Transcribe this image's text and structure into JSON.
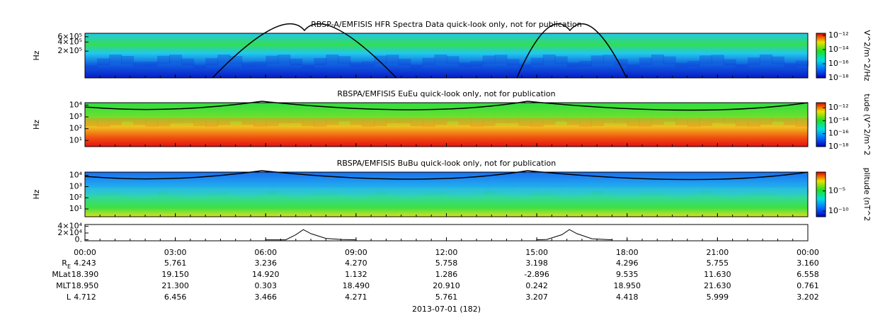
{
  "chart_data": [
    {
      "type": "spectrogram",
      "title": "RBSP-A/EMFISIS  HFR Spectra Data quick-look only, not for publication",
      "ylabel": "Hz",
      "log": true,
      "ylim": [
        26000,
        780000
      ],
      "yticks": [
        {
          "value": 600000,
          "label": "6×10⁵"
        },
        {
          "value": 400000,
          "label": "4×10⁵"
        },
        {
          "value": 200000,
          "label": "2×10⁵"
        }
      ],
      "colorbar_label": "V^2/m^2/Hz",
      "clim": [
        1e-18,
        2e-12
      ],
      "cticks": [
        {
          "value": 1e-12,
          "label": "10⁻¹²"
        },
        {
          "value": 1e-14,
          "label": "10⁻¹⁴"
        },
        {
          "value": 1e-16,
          "label": "10⁻¹⁶"
        },
        {
          "value": 1e-18,
          "label": "10⁻¹⁸"
        }
      ]
    },
    {
      "type": "spectrogram",
      "title": "RBSPA/EMFISIS  EuEu quick-look only, not for publication",
      "ylabel": "Hz",
      "log": true,
      "ylim": [
        3,
        16000
      ],
      "yticks": [
        {
          "value": 10000,
          "label": "10⁴"
        },
        {
          "value": 1000,
          "label": "10³"
        },
        {
          "value": 100,
          "label": "10²"
        },
        {
          "value": 10,
          "label": "10¹"
        }
      ],
      "colorbar_label": "tude (V^2/m^2",
      "clim": [
        1e-18,
        6e-12
      ],
      "cticks": [
        {
          "value": 1e-12,
          "label": "10⁻¹²"
        },
        {
          "value": 1e-14,
          "label": "10⁻¹⁴"
        },
        {
          "value": 1e-16,
          "label": "10⁻¹⁶"
        },
        {
          "value": 1e-18,
          "label": "10⁻¹⁸"
        }
      ]
    },
    {
      "type": "spectrogram",
      "title": "RBSPA/EMFISIS  BuBu quick-look only, not for publication",
      "ylabel": "Hz",
      "log": true,
      "ylim": [
        2,
        20000
      ],
      "yticks": [
        {
          "value": 10000,
          "label": "10⁴"
        },
        {
          "value": 1000,
          "label": "10³"
        },
        {
          "value": 100,
          "label": "10²"
        },
        {
          "value": 10,
          "label": "10¹"
        }
      ],
      "colorbar_label": "plitude (nT^2",
      "clim": [
        4e-12,
        0.45
      ],
      "cticks": [
        {
          "value": 1e-05,
          "label": "10⁻⁵"
        },
        {
          "value": 1e-10,
          "label": "10⁻¹⁰"
        }
      ]
    },
    {
      "type": "line",
      "color": "#000000",
      "ylim": [
        -3000,
        45000
      ],
      "yticks": [
        {
          "value": 40000,
          "label": "4×10⁴"
        },
        {
          "value": 20000,
          "label": "2×10⁴"
        },
        {
          "value": 0,
          "label": "0."
        }
      ],
      "x": [
        "06:00",
        "06:40",
        "07:00",
        "07:15",
        "07:30",
        "08:00",
        "08:30",
        "09:00",
        "15:00",
        "15:20",
        "15:50",
        "16:05",
        "16:20",
        "16:50",
        "17:20",
        "17:30"
      ],
      "values": [
        0,
        0,
        15000,
        30000,
        18000,
        4000,
        1000,
        0,
        0,
        1000,
        15000,
        30000,
        18000,
        3000,
        500,
        0
      ]
    }
  ],
  "time_axis": {
    "ticks": [
      "00:00",
      "03:00",
      "06:00",
      "09:00",
      "12:00",
      "15:00",
      "18:00",
      "21:00",
      "00:00"
    ],
    "date": "2013-07-01 (182)"
  },
  "ephemeris": {
    "rows": [
      {
        "label": "R",
        "sub": "E",
        "values": [
          "4.243",
          "5.761",
          "3.236",
          "4.270",
          "5.758",
          "3.198",
          "4.296",
          "5.755",
          "3.160"
        ]
      },
      {
        "label": "MLat",
        "values": [
          "18.390",
          "19.150",
          "14.920",
          "1.132",
          "1.286",
          "-2.896",
          "9.535",
          "11.630",
          "6.558"
        ]
      },
      {
        "label": "MLT",
        "values": [
          "18.950",
          "21.300",
          "0.303",
          "18.490",
          "20.910",
          "0.242",
          "18.950",
          "21.630",
          "0.761"
        ]
      },
      {
        "label": "L",
        "values": [
          "4.712",
          "6.456",
          "3.466",
          "4.271",
          "5.761",
          "3.207",
          "4.418",
          "5.999",
          "3.202"
        ]
      }
    ]
  }
}
